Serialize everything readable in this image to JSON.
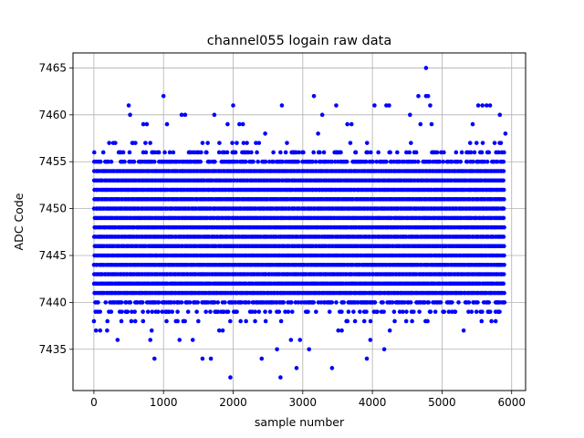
{
  "chart_data": {
    "type": "scatter",
    "title": "channel055 logain raw data",
    "xlabel": "sample number",
    "ylabel": "ADC Code",
    "xlim": [
      -300,
      6200
    ],
    "ylim": [
      7430.6,
      7466.6
    ],
    "x_ticks": [
      0,
      1000,
      2000,
      3000,
      4000,
      5000,
      6000
    ],
    "y_ticks": [
      7435,
      7440,
      7445,
      7450,
      7455,
      7460,
      7465
    ],
    "grid": true,
    "marker_color": "#0000ff",
    "sample_count": 6000,
    "series": [
      {
        "name": "",
        "color": "#0000ff",
        "dense_band": {
          "x_range": [
            0,
            5900
          ],
          "y_range": [
            7441,
            7454
          ],
          "note": "nearly every integer code in this range is hit across all sample numbers"
        },
        "points": [
          [
            30,
            7437
          ],
          [
            90,
            7437
          ],
          [
            190,
            7437
          ],
          [
            340,
            7436
          ],
          [
            500,
            7461
          ],
          [
            520,
            7460
          ],
          [
            710,
            7459
          ],
          [
            760,
            7459
          ],
          [
            810,
            7436
          ],
          [
            830,
            7437
          ],
          [
            870,
            7434
          ],
          [
            1000,
            7462
          ],
          [
            1050,
            7459
          ],
          [
            1230,
            7436
          ],
          [
            1260,
            7460
          ],
          [
            1310,
            7460
          ],
          [
            1420,
            7436
          ],
          [
            1560,
            7434
          ],
          [
            1680,
            7434
          ],
          [
            1730,
            7460
          ],
          [
            1800,
            7437
          ],
          [
            1850,
            7437
          ],
          [
            1920,
            7459
          ],
          [
            1960,
            7432
          ],
          [
            2000,
            7461
          ],
          [
            2090,
            7459
          ],
          [
            2140,
            7459
          ],
          [
            2410,
            7434
          ],
          [
            2460,
            7458
          ],
          [
            2630,
            7435
          ],
          [
            2680,
            7432
          ],
          [
            2700,
            7461
          ],
          [
            2830,
            7436
          ],
          [
            2910,
            7433
          ],
          [
            2960,
            7436
          ],
          [
            3090,
            7435
          ],
          [
            3160,
            7462
          ],
          [
            3220,
            7458
          ],
          [
            3280,
            7460
          ],
          [
            3420,
            7433
          ],
          [
            3480,
            7461
          ],
          [
            3510,
            7437
          ],
          [
            3560,
            7437
          ],
          [
            3640,
            7459
          ],
          [
            3700,
            7459
          ],
          [
            3920,
            7434
          ],
          [
            3970,
            7436
          ],
          [
            4030,
            7461
          ],
          [
            4170,
            7435
          ],
          [
            4200,
            7461
          ],
          [
            4240,
            7461
          ],
          [
            4250,
            7437
          ],
          [
            4320,
            7438
          ],
          [
            4540,
            7460
          ],
          [
            4570,
            7438
          ],
          [
            4660,
            7462
          ],
          [
            4690,
            7459
          ],
          [
            4770,
            7465
          ],
          [
            4770,
            7462
          ],
          [
            4800,
            7462
          ],
          [
            4830,
            7461
          ],
          [
            4850,
            7459
          ],
          [
            5310,
            7437
          ],
          [
            5440,
            7459
          ],
          [
            5520,
            7461
          ],
          [
            5580,
            7461
          ],
          [
            5640,
            7461
          ],
          [
            5690,
            7461
          ],
          [
            5710,
            7438
          ],
          [
            5770,
            7438
          ],
          [
            5830,
            7460
          ],
          [
            5910,
            7458
          ]
        ]
      }
    ]
  }
}
